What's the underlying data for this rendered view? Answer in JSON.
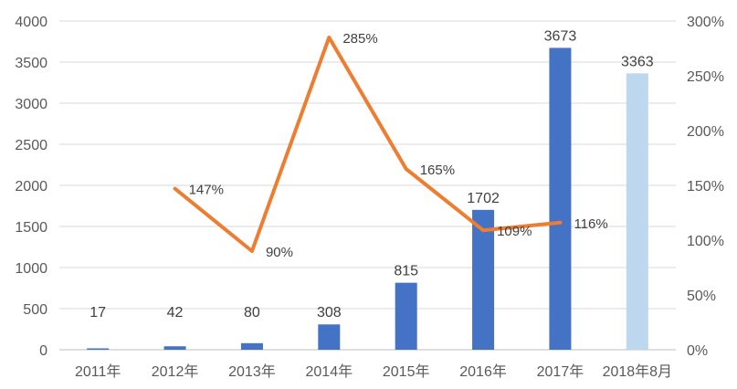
{
  "chart_data": {
    "type": "bar",
    "categories": [
      "2011年",
      "2012年",
      "2013年",
      "2014年",
      "2015年",
      "2016年",
      "2017年",
      "2018年8月"
    ],
    "series": [
      {
        "type": "bar",
        "values": [
          17,
          42,
          80,
          308,
          815,
          1702,
          3673,
          3363
        ],
        "value_labels": [
          "17",
          "42",
          "80",
          "308",
          "815",
          "1702",
          "3673",
          "3363"
        ],
        "color": "#4472C4",
        "highlight_color": "#BDD7EE",
        "highlight_index": 7,
        "axis": "left"
      },
      {
        "type": "line",
        "values": [
          null,
          147,
          90,
          285,
          165,
          109,
          116,
          null
        ],
        "value_labels": [
          null,
          "147%",
          "90%",
          "285%",
          "165%",
          "109%",
          "116%",
          null
        ],
        "color": "#ED7D31",
        "axis": "right"
      }
    ],
    "y_left": {
      "min": 0,
      "max": 4000,
      "step": 500,
      "tick_labels": [
        "0",
        "500",
        "1000",
        "1500",
        "2000",
        "2500",
        "3000",
        "3500",
        "4000"
      ]
    },
    "y_right": {
      "min": 0,
      "max": 300,
      "step": 50,
      "tick_labels": [
        "0%",
        "50%",
        "100%",
        "150%",
        "200%",
        "250%",
        "300%"
      ]
    },
    "grid": true,
    "legend": "none"
  }
}
